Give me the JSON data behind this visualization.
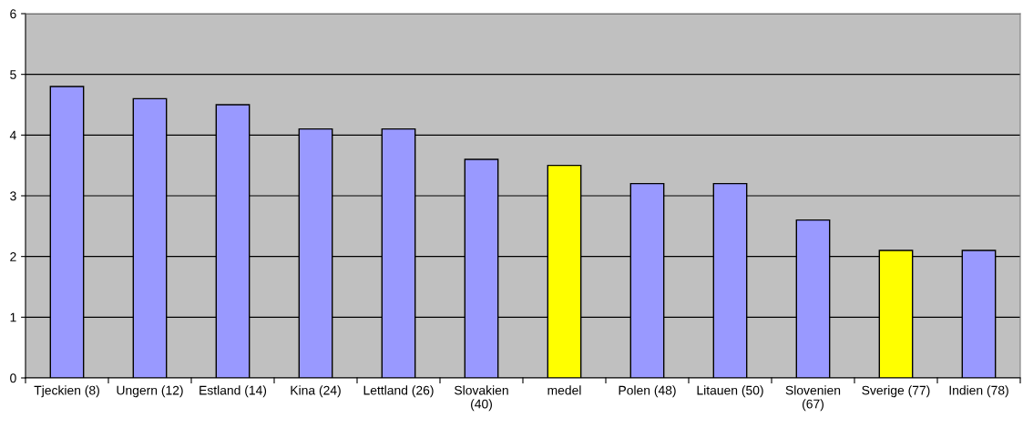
{
  "chart_data": {
    "type": "bar",
    "categories": [
      "Tjeckien (8)",
      "Ungern (12)",
      "Estland (14)",
      "Kina (24)",
      "Lettland (26)",
      "Slovakien\n(40)",
      "medel",
      "Polen (48)",
      "Litauen (50)",
      "Slovenien\n(67)",
      "Sverige (77)",
      "Indien (78)"
    ],
    "values": [
      4.8,
      4.6,
      4.5,
      4.1,
      4.1,
      3.6,
      3.5,
      3.2,
      3.2,
      2.6,
      2.1,
      2.1
    ],
    "colors": [
      "#9999ff",
      "#9999ff",
      "#9999ff",
      "#9999ff",
      "#9999ff",
      "#9999ff",
      "#ffff00",
      "#9999ff",
      "#9999ff",
      "#9999ff",
      "#ffff00",
      "#9999ff"
    ],
    "ylim": [
      0,
      6
    ],
    "yticks": [
      0,
      1,
      2,
      3,
      4,
      5,
      6
    ],
    "grid": "y",
    "legend": false
  }
}
